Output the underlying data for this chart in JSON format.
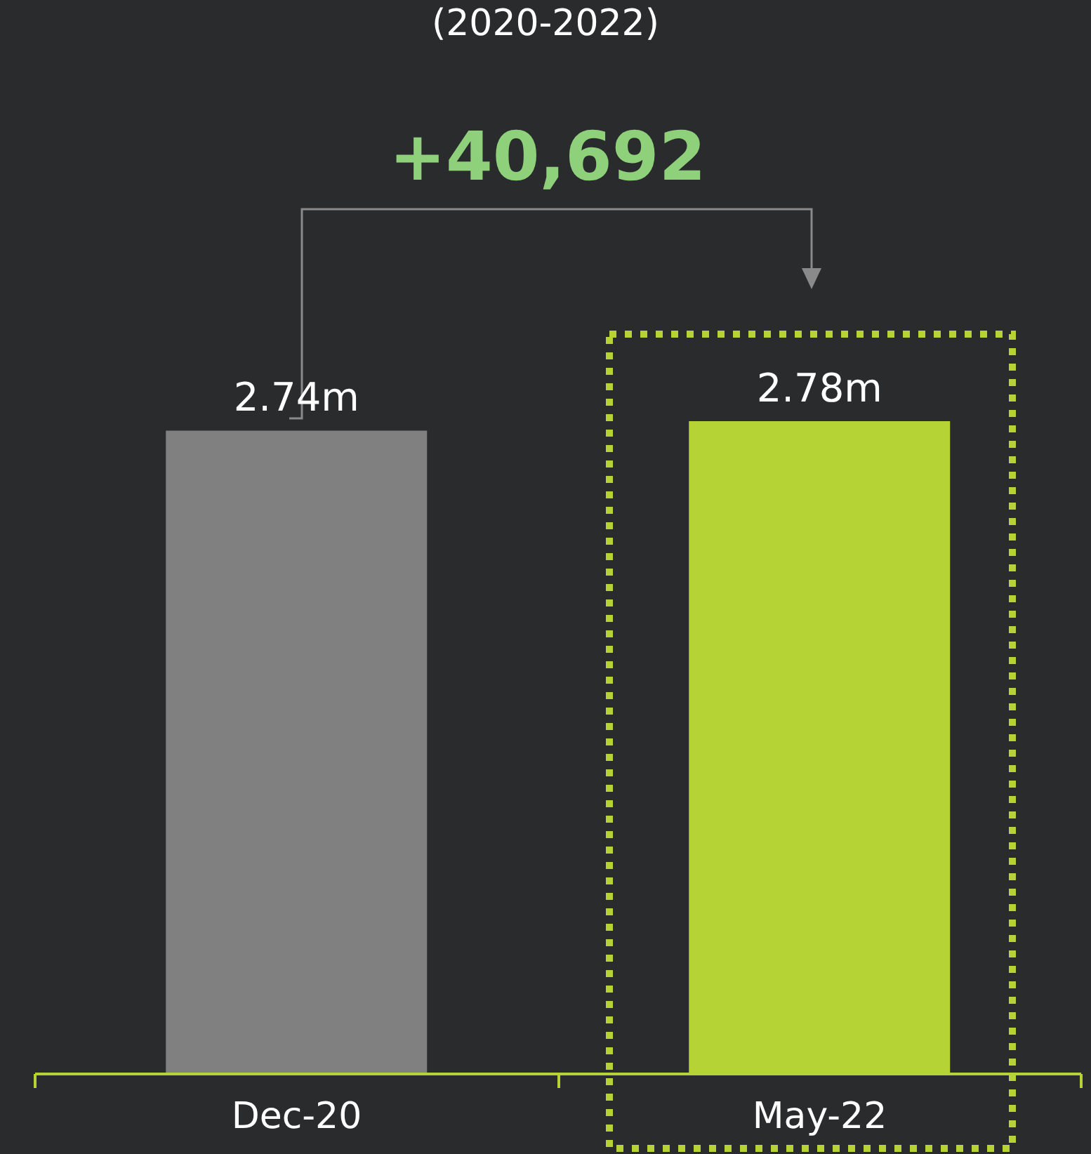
{
  "chart_data": {
    "type": "bar",
    "title": "(2020-2022)",
    "categories": [
      "Dec-20",
      "May-22"
    ],
    "values": [
      2.74,
      2.78
    ],
    "colors": [
      "#808080",
      "#b5d334"
    ],
    "value_labels": [
      "2.74m",
      "2.78m"
    ],
    "annotations": [
      "+40,692"
    ]
  }
}
